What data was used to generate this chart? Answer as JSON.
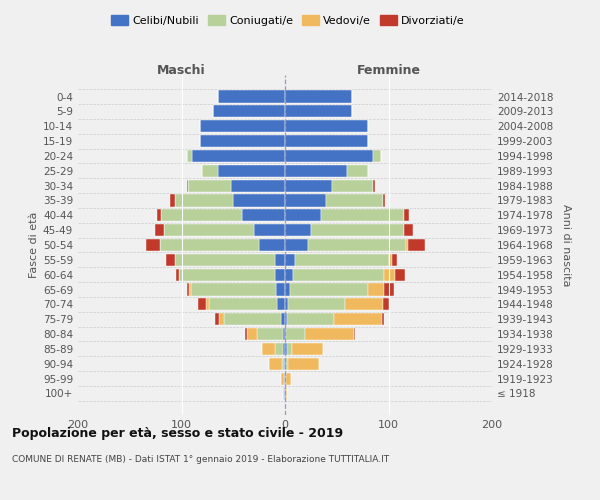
{
  "age_groups": [
    "100+",
    "95-99",
    "90-94",
    "85-89",
    "80-84",
    "75-79",
    "70-74",
    "65-69",
    "60-64",
    "55-59",
    "50-54",
    "45-49",
    "40-44",
    "35-39",
    "30-34",
    "25-29",
    "20-24",
    "15-19",
    "10-14",
    "5-9",
    "0-4"
  ],
  "birth_years": [
    "≤ 1918",
    "1919-1923",
    "1924-1928",
    "1929-1933",
    "1934-1938",
    "1939-1943",
    "1944-1948",
    "1949-1953",
    "1954-1958",
    "1959-1963",
    "1964-1968",
    "1969-1973",
    "1974-1978",
    "1979-1983",
    "1984-1988",
    "1989-1993",
    "1994-1998",
    "1999-2003",
    "2004-2008",
    "2009-2013",
    "2014-2018"
  ],
  "colors": {
    "celibi": "#4472c4",
    "coniugati": "#b8d09a",
    "vedovi": "#f0b95e",
    "divorziati": "#c0392b"
  },
  "males": {
    "celibi": [
      1,
      1,
      1,
      2,
      2,
      4,
      8,
      9,
      10,
      10,
      25,
      30,
      42,
      50,
      52,
      65,
      90,
      82,
      82,
      70,
      65
    ],
    "coniugati": [
      0,
      0,
      2,
      8,
      25,
      55,
      65,
      82,
      92,
      96,
      96,
      87,
      78,
      56,
      42,
      15,
      5,
      0,
      0,
      0,
      0
    ],
    "vedovi": [
      1,
      3,
      12,
      12,
      10,
      5,
      3,
      2,
      0,
      0,
      0,
      0,
      0,
      0,
      0,
      0,
      0,
      0,
      0,
      0,
      0
    ],
    "divorziati": [
      0,
      0,
      0,
      0,
      2,
      4,
      8,
      2,
      3,
      9,
      13,
      9,
      4,
      5,
      1,
      0,
      0,
      0,
      0,
      0,
      0
    ]
  },
  "females": {
    "nubili": [
      1,
      1,
      1,
      2,
      1,
      2,
      3,
      5,
      8,
      10,
      22,
      25,
      35,
      40,
      45,
      60,
      85,
      80,
      80,
      65,
      65
    ],
    "coniugate": [
      0,
      0,
      2,
      5,
      18,
      45,
      55,
      75,
      88,
      90,
      95,
      90,
      80,
      55,
      40,
      20,
      8,
      0,
      0,
      0,
      0
    ],
    "vedove": [
      1,
      5,
      30,
      30,
      48,
      47,
      37,
      16,
      10,
      3,
      2,
      0,
      0,
      0,
      0,
      0,
      0,
      0,
      0,
      0,
      0
    ],
    "divorziate": [
      0,
      0,
      0,
      0,
      1,
      2,
      5,
      9,
      10,
      5,
      16,
      9,
      5,
      2,
      2,
      0,
      0,
      0,
      0,
      0,
      0
    ]
  },
  "xlim": [
    -200,
    200
  ],
  "xticks": [
    -200,
    -100,
    0,
    100,
    200
  ],
  "xticklabels": [
    "200",
    "100",
    "0",
    "100",
    "200"
  ],
  "title": "Popolazione per età, sesso e stato civile - 2019",
  "subtitle": "COMUNE DI RENATE (MB) - Dati ISTAT 1° gennaio 2019 - Elaborazione TUTTITALIA.IT",
  "ylabel_left": "Fasce di età",
  "ylabel_right": "Anni di nascita",
  "maschi_label": "Maschi",
  "femmine_label": "Femmine",
  "background_color": "#f0f0f0",
  "plot_bg": "#f0f0f0"
}
